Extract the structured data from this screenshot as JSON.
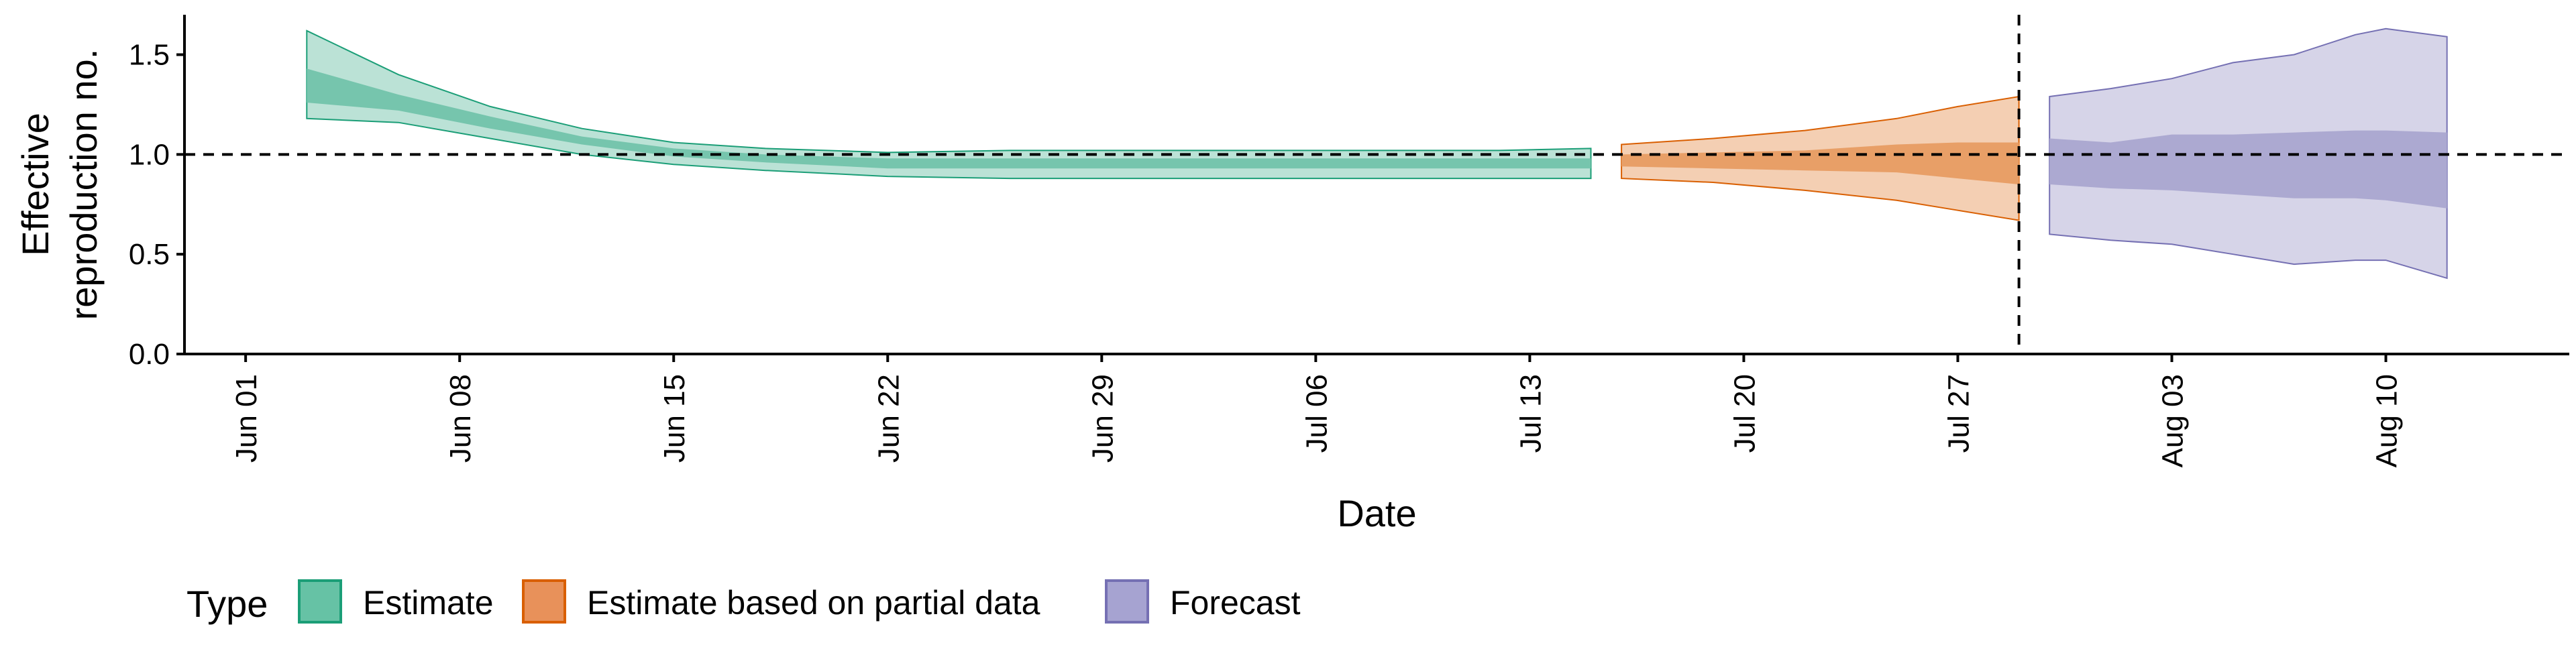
{
  "chart_data": {
    "type": "area",
    "title": "",
    "xlabel": "Date",
    "ylabel_lines": [
      "Effective",
      "reproduction no."
    ],
    "x_ticks": [
      "Jun 01",
      "Jun 08",
      "Jun 15",
      "Jun 22",
      "Jun 29",
      "Jul 06",
      "Jul 13",
      "Jul 20",
      "Jul 27",
      "Aug 03",
      "Aug 10"
    ],
    "y_ticks": [
      "0.0",
      "0.5",
      "1.0",
      "1.5"
    ],
    "ylim": [
      0,
      1.7
    ],
    "xlim": [
      "2020-05-30",
      "2020-08-16"
    ],
    "reference_line_y": 1.0,
    "reference_line_date": "2020-07-29",
    "grid": false,
    "legend": {
      "position": "bottom",
      "title": "Type",
      "entries": [
        {
          "label": "Estimate",
          "fill": "#66c2a5",
          "stroke": "#1b9e77"
        },
        {
          "label": "Estimate based on partial data",
          "fill": "#e8915a",
          "stroke": "#d95f02"
        },
        {
          "label": "Forecast",
          "fill": "#a6a3d1",
          "stroke": "#7570b3"
        }
      ]
    },
    "series": [
      {
        "name": "Estimate",
        "color": "#1b9e77",
        "points": [
          {
            "date": "2020-06-03",
            "outer": [
              1.18,
              1.62
            ],
            "inner": [
              1.26,
              1.43
            ]
          },
          {
            "date": "2020-06-06",
            "outer": [
              1.16,
              1.4
            ],
            "inner": [
              1.22,
              1.3
            ]
          },
          {
            "date": "2020-06-09",
            "outer": [
              1.08,
              1.24
            ],
            "inner": [
              1.13,
              1.19
            ]
          },
          {
            "date": "2020-06-12",
            "outer": [
              1.0,
              1.13
            ],
            "inner": [
              1.05,
              1.09
            ]
          },
          {
            "date": "2020-06-15",
            "outer": [
              0.95,
              1.06
            ],
            "inner": [
              0.99,
              1.03
            ]
          },
          {
            "date": "2020-06-18",
            "outer": [
              0.92,
              1.03
            ],
            "inner": [
              0.96,
              1.0
            ]
          },
          {
            "date": "2020-06-22",
            "outer": [
              0.89,
              1.01
            ],
            "inner": [
              0.93,
              0.98
            ]
          },
          {
            "date": "2020-06-26",
            "outer": [
              0.88,
              1.02
            ],
            "inner": [
              0.93,
              0.98
            ]
          },
          {
            "date": "2020-06-30",
            "outer": [
              0.88,
              1.02
            ],
            "inner": [
              0.93,
              0.98
            ]
          },
          {
            "date": "2020-07-04",
            "outer": [
              0.88,
              1.02
            ],
            "inner": [
              0.93,
              0.98
            ]
          },
          {
            "date": "2020-07-08",
            "outer": [
              0.88,
              1.02
            ],
            "inner": [
              0.93,
              0.98
            ]
          },
          {
            "date": "2020-07-12",
            "outer": [
              0.88,
              1.02
            ],
            "inner": [
              0.93,
              0.98
            ]
          },
          {
            "date": "2020-07-15",
            "outer": [
              0.88,
              1.03
            ],
            "inner": [
              0.93,
              0.98
            ]
          }
        ]
      },
      {
        "name": "Estimate based on partial data",
        "color": "#d95f02",
        "points": [
          {
            "date": "2020-07-16",
            "outer": [
              0.88,
              1.05
            ],
            "inner": [
              0.94,
              1.0
            ]
          },
          {
            "date": "2020-07-19",
            "outer": [
              0.86,
              1.08
            ],
            "inner": [
              0.93,
              1.01
            ]
          },
          {
            "date": "2020-07-22",
            "outer": [
              0.82,
              1.12
            ],
            "inner": [
              0.92,
              1.02
            ]
          },
          {
            "date": "2020-07-25",
            "outer": [
              0.77,
              1.18
            ],
            "inner": [
              0.91,
              1.05
            ]
          },
          {
            "date": "2020-07-27",
            "outer": [
              0.72,
              1.24
            ],
            "inner": [
              0.88,
              1.06
            ]
          },
          {
            "date": "2020-07-29",
            "outer": [
              0.67,
              1.29
            ],
            "inner": [
              0.85,
              1.06
            ]
          }
        ]
      },
      {
        "name": "Forecast",
        "color": "#7570b3",
        "points": [
          {
            "date": "2020-07-30",
            "outer": [
              0.6,
              1.29
            ],
            "inner": [
              0.85,
              1.08
            ]
          },
          {
            "date": "2020-08-01",
            "outer": [
              0.57,
              1.33
            ],
            "inner": [
              0.83,
              1.06
            ]
          },
          {
            "date": "2020-08-03",
            "outer": [
              0.55,
              1.38
            ],
            "inner": [
              0.82,
              1.1
            ]
          },
          {
            "date": "2020-08-05",
            "outer": [
              0.5,
              1.46
            ],
            "inner": [
              0.8,
              1.1
            ]
          },
          {
            "date": "2020-08-07",
            "outer": [
              0.45,
              1.5
            ],
            "inner": [
              0.78,
              1.11
            ]
          },
          {
            "date": "2020-08-09",
            "outer": [
              0.47,
              1.6
            ],
            "inner": [
              0.78,
              1.12
            ]
          },
          {
            "date": "2020-08-10",
            "outer": [
              0.47,
              1.63
            ],
            "inner": [
              0.77,
              1.12
            ]
          },
          {
            "date": "2020-08-12",
            "outer": [
              0.38,
              1.59
            ],
            "inner": [
              0.73,
              1.11
            ]
          }
        ]
      }
    ]
  }
}
